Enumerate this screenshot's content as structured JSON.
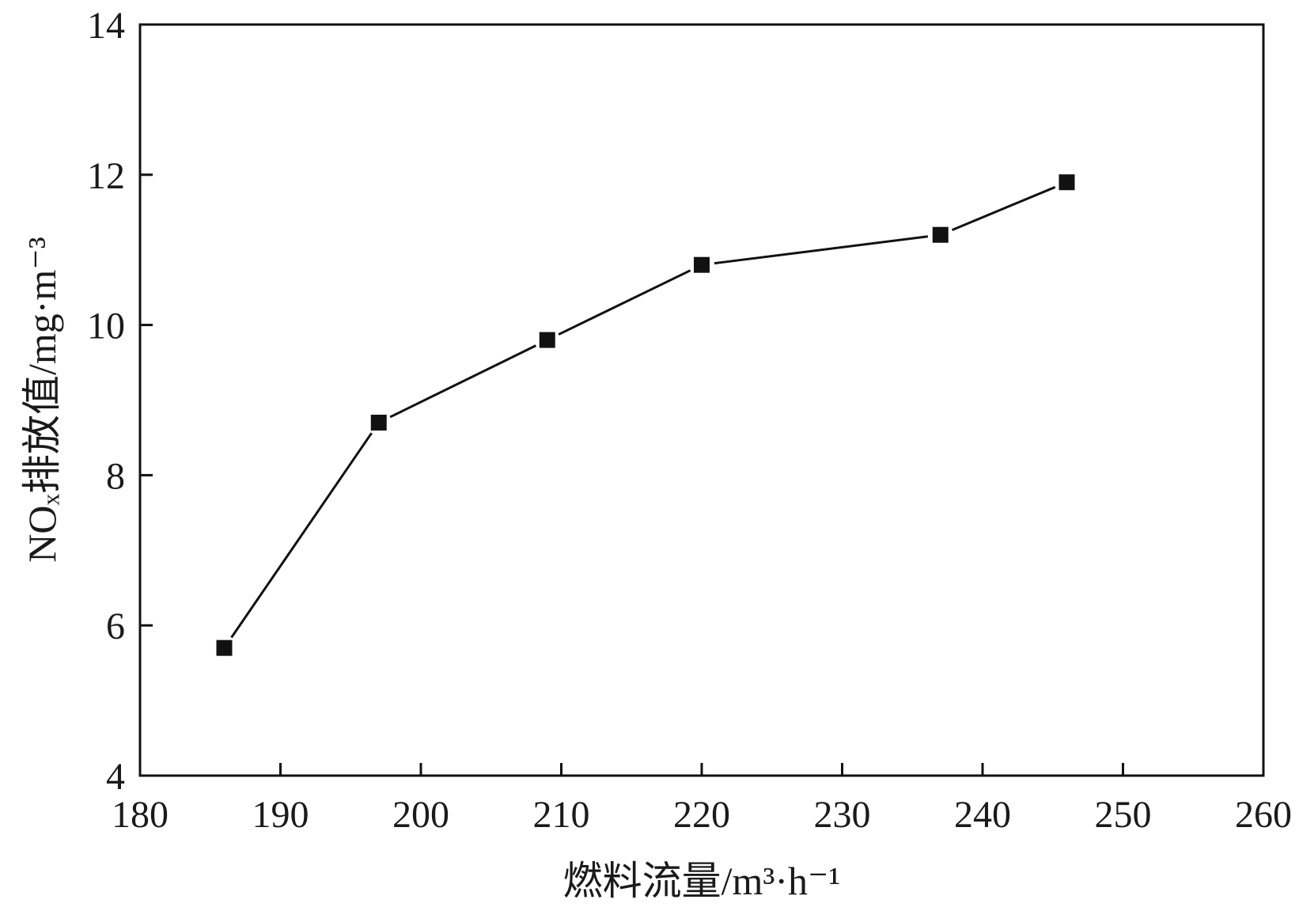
{
  "chart_data": {
    "type": "line",
    "title": "",
    "xlabel": "燃料流量/m³·h⁻¹",
    "ylabel": "NOₓ排放值/mg·m⁻³",
    "xlim": [
      180,
      260
    ],
    "ylim": [
      4,
      14
    ],
    "xticks": [
      180,
      190,
      200,
      210,
      220,
      230,
      240,
      250,
      260
    ],
    "yticks": [
      4,
      6,
      8,
      10,
      12,
      14
    ],
    "grid": false,
    "legend": "none",
    "series": [
      {
        "x": [
          186,
          197,
          209,
          220,
          237,
          246
        ],
        "y": [
          5.7,
          8.7,
          9.8,
          10.8,
          11.2,
          11.9
        ],
        "marker": "square",
        "color": "#111111"
      }
    ]
  }
}
